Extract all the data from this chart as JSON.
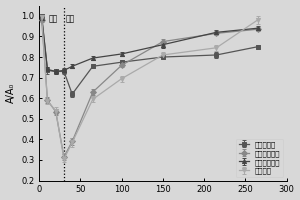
{
  "title": "",
  "xlabel": "",
  "ylabel": "A/A₀",
  "xlim": [
    0,
    300
  ],
  "ylim": [
    0.2,
    1.05
  ],
  "yticks": [
    0.2,
    0.3,
    0.4,
    0.5,
    0.6,
    0.7,
    0.8,
    0.9,
    1.0
  ],
  "xticks": [
    0,
    50,
    100,
    150,
    200,
    250,
    300
  ],
  "dotted_line_x": 30,
  "adsorption_label": "吸附",
  "desorption_label": "解附",
  "series": [
    {
      "label": "未再生材料",
      "marker": "s",
      "color": "#555555",
      "x": [
        3,
        10,
        20,
        30,
        40,
        65,
        100,
        150,
        215,
        265
      ],
      "y": [
        1.0,
        0.735,
        0.73,
        0.73,
        0.62,
        0.755,
        0.775,
        0.8,
        0.81,
        0.85
      ],
      "yerr": [
        0.01,
        0.015,
        0.01,
        0.01,
        0.015,
        0.01,
        0.01,
        0.01,
        0.015,
        0.01
      ]
    },
    {
      "label": "第二次再生后",
      "marker": "D",
      "color": "#888888",
      "x": [
        3,
        10,
        20,
        30,
        40,
        65,
        100,
        150,
        215,
        265
      ],
      "y": [
        0.98,
        0.59,
        0.535,
        0.315,
        0.39,
        0.63,
        0.76,
        0.875,
        0.915,
        0.935
      ],
      "yerr": [
        0.01,
        0.015,
        0.015,
        0.015,
        0.015,
        0.015,
        0.01,
        0.015,
        0.01,
        0.01
      ]
    },
    {
      "label": "第一次再生后",
      "marker": "^",
      "color": "#444444",
      "x": [
        3,
        10,
        20,
        30,
        40,
        65,
        100,
        150,
        215,
        265
      ],
      "y": [
        0.99,
        0.74,
        0.73,
        0.735,
        0.755,
        0.795,
        0.815,
        0.86,
        0.92,
        0.94
      ],
      "yerr": [
        0.01,
        0.01,
        0.01,
        0.01,
        0.01,
        0.01,
        0.01,
        0.015,
        0.01,
        0.01
      ]
    },
    {
      "label": "初始材料",
      "marker": "v",
      "color": "#aaaaaa",
      "x": [
        3,
        10,
        20,
        30,
        40,
        65,
        100,
        150,
        215,
        265
      ],
      "y": [
        0.995,
        0.585,
        0.54,
        0.305,
        0.385,
        0.595,
        0.695,
        0.81,
        0.845,
        0.98
      ],
      "yerr": [
        0.01,
        0.015,
        0.015,
        0.015,
        0.02,
        0.015,
        0.015,
        0.015,
        0.015,
        0.02
      ]
    }
  ],
  "background_color": "#d8d8d8",
  "legend_loc": "lower right",
  "legend_fontsize": 5.0,
  "ylabel_fontsize": 7,
  "tick_labelsize": 6
}
